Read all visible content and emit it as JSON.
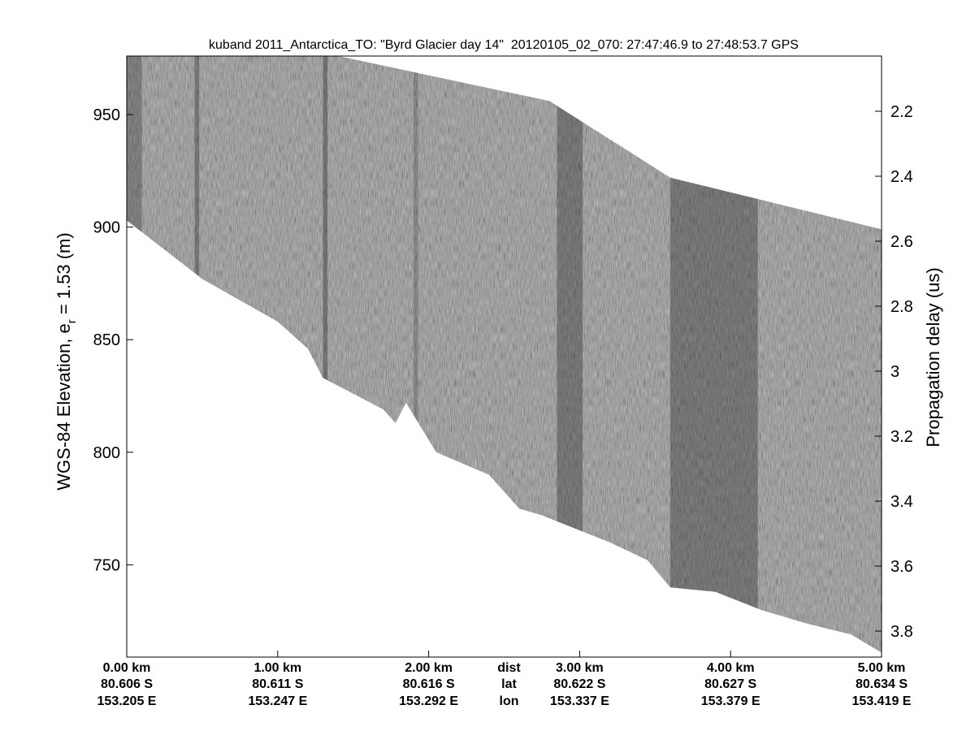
{
  "chart_data": {
    "type": "heatmap",
    "title": "kuband 2011_Antarctica_TO: \"Byrd Glacier day 14\"  20120105_02_070: 27:47:46.9 to 27:48:53.7 GPS",
    "ylabel_left": {
      "prefix": "WGS-84 Elevation, e",
      "subscript": "r",
      "suffix": " = 1.53 (m)"
    },
    "ylabel_right": "Propagation delay (us)",
    "left_axis": {
      "ylim": [
        709,
        976
      ],
      "ticks": [
        {
          "value": 750,
          "label": "750"
        },
        {
          "value": 800,
          "label": "800"
        },
        {
          "value": 850,
          "label": "850"
        },
        {
          "value": 900,
          "label": "900"
        },
        {
          "value": 950,
          "label": "950"
        }
      ]
    },
    "right_axis": {
      "reversed": true,
      "ylim": [
        2.03,
        3.88
      ],
      "ticks": [
        {
          "value": 2.2,
          "label": "2.2"
        },
        {
          "value": 2.4,
          "label": "2.4"
        },
        {
          "value": 2.6,
          "label": "2.6"
        },
        {
          "value": 2.8,
          "label": "2.8"
        },
        {
          "value": 3.0,
          "label": "3"
        },
        {
          "value": 3.2,
          "label": "3.2"
        },
        {
          "value": 3.4,
          "label": "3.4"
        },
        {
          "value": 3.6,
          "label": "3.6"
        },
        {
          "value": 3.8,
          "label": "3.8"
        }
      ]
    },
    "xlim_km": [
      0,
      5
    ],
    "x_ticks": [
      {
        "km": 0,
        "dist": "0.00 km",
        "lat": "80.606 S",
        "lon": "153.205 E"
      },
      {
        "km": 1,
        "dist": "1.00 km",
        "lat": "80.611 S",
        "lon": "153.247 E"
      },
      {
        "km": 2,
        "dist": "2.00 km",
        "lat": "80.616 S",
        "lon": "153.292 E"
      },
      {
        "km": 3,
        "dist": "3.00 km",
        "lat": "80.622 S",
        "lon": "153.337 E"
      },
      {
        "km": 4,
        "dist": "4.00 km",
        "lat": "80.627 S",
        "lon": "153.379 E"
      },
      {
        "km": 5,
        "dist": "5.00 km",
        "lat": "80.634 S",
        "lon": "153.419 E"
      }
    ],
    "row_labels": {
      "dist": "dist",
      "lat": "lat",
      "lon": "lon"
    },
    "row_labels_km": 2.5,
    "surface": {
      "km": [
        0,
        1.4,
        2.8,
        3.6,
        5
      ],
      "elev": [
        976,
        976,
        956,
        922,
        899
      ]
    },
    "bottom": {
      "km": [
        0,
        0.5,
        1.0,
        1.2,
        1.3,
        1.7,
        1.78,
        1.85,
        2.05,
        2.4,
        2.6,
        2.75,
        3.2,
        3.45,
        3.6,
        3.9,
        4.2,
        4.5,
        4.8,
        5.0
      ],
      "elev": [
        903,
        877,
        858,
        846,
        833,
        819,
        813,
        822,
        800,
        790,
        775,
        772,
        760,
        752,
        740,
        738,
        730,
        724,
        719,
        711
      ]
    },
    "dark_bands": [
      {
        "start_km": 0.0,
        "end_km": 0.1,
        "strength": 0.45
      },
      {
        "start_km": 0.45,
        "end_km": 0.48,
        "strength": 0.55
      },
      {
        "start_km": 1.3,
        "end_km": 1.33,
        "strength": 0.6
      },
      {
        "start_km": 1.9,
        "end_km": 1.93,
        "strength": 0.35
      },
      {
        "start_km": 2.85,
        "end_km": 3.02,
        "strength": 0.55
      },
      {
        "start_km": 3.6,
        "end_km": 4.18,
        "strength": 0.55
      }
    ],
    "colormap": "gray",
    "grid": false
  }
}
